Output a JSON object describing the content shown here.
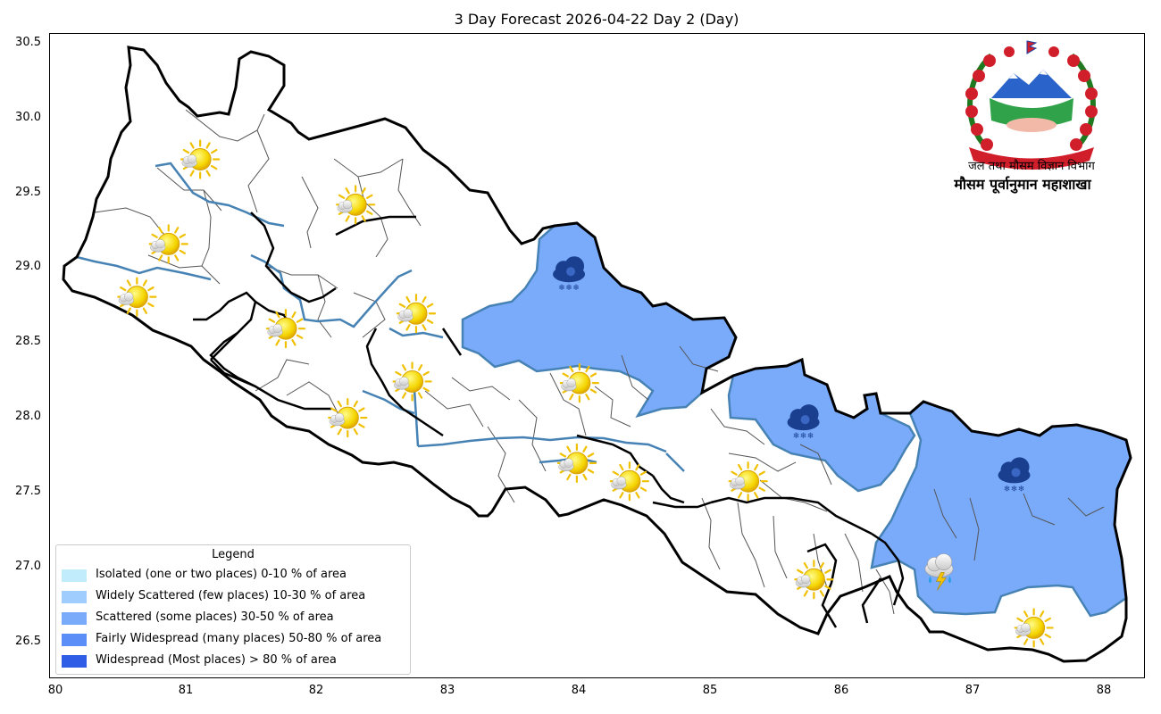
{
  "title": "3 Day Forecast 2026-04-22 Day 2 (Day)",
  "header": {
    "department": "जल तथा मौसम विज्ञान विभाग",
    "section": "मौसम पूर्वानुमान महाशाखा"
  },
  "axes": {
    "x_range": [
      79.98,
      88.3
    ],
    "y_range": [
      26.27,
      30.54
    ],
    "x_ticks": [
      "80",
      "81",
      "82",
      "83",
      "84",
      "85",
      "86",
      "87",
      "88"
    ],
    "y_ticks": [
      "26.5",
      "27.0",
      "27.5",
      "28.0",
      "28.5",
      "29.0",
      "29.5",
      "30.0",
      "30.5"
    ]
  },
  "legend": {
    "title": "Legend",
    "placement": "lower-left",
    "items": [
      {
        "label": "Isolated (one or two places)  0-10 % of area",
        "color": "#c0ecfb"
      },
      {
        "label": "Widely Scattered (few places)  10-30 % of area",
        "color": "#9fcdfd"
      },
      {
        "label": "Scattered (some places)  30-50 % of area",
        "color": "#7aabfb"
      },
      {
        "label": "Fairly Widespread (many places)  50-80 % of area",
        "color": "#5b8ef7"
      },
      {
        "label": "Widespread (Most places) > 80 % of area",
        "color": "#2f5de6"
      }
    ]
  },
  "colors": {
    "province_border": "#000000",
    "basin_border": "#4682b4",
    "district_border": "#555555",
    "scattered_fill": "#7aabfb"
  },
  "weather_icons": [
    {
      "lon": 81.12,
      "lat": 29.71,
      "icon": "partly-sunny-icon"
    },
    {
      "lon": 82.3,
      "lat": 29.41,
      "icon": "partly-sunny-icon"
    },
    {
      "lon": 80.88,
      "lat": 29.15,
      "icon": "partly-sunny-icon"
    },
    {
      "lon": 80.64,
      "lat": 28.8,
      "icon": "partly-sunny-icon"
    },
    {
      "lon": 81.77,
      "lat": 28.59,
      "icon": "partly-sunny-icon"
    },
    {
      "lon": 82.76,
      "lat": 28.69,
      "icon": "partly-sunny-icon"
    },
    {
      "lon": 82.73,
      "lat": 28.24,
      "icon": "partly-sunny-icon"
    },
    {
      "lon": 82.24,
      "lat": 28.0,
      "icon": "partly-sunny-icon"
    },
    {
      "lon": 84.0,
      "lat": 28.23,
      "icon": "partly-sunny-icon"
    },
    {
      "lon": 83.98,
      "lat": 27.7,
      "icon": "partly-sunny-icon"
    },
    {
      "lon": 84.38,
      "lat": 27.58,
      "icon": "partly-sunny-icon"
    },
    {
      "lon": 85.28,
      "lat": 27.58,
      "icon": "partly-sunny-icon"
    },
    {
      "lon": 85.78,
      "lat": 26.93,
      "icon": "partly-sunny-icon"
    },
    {
      "lon": 87.45,
      "lat": 26.61,
      "icon": "partly-sunny-icon"
    },
    {
      "lon": 83.92,
      "lat": 28.95,
      "icon": "snow-cloud-icon"
    },
    {
      "lon": 85.7,
      "lat": 27.97,
      "icon": "snow-cloud-icon"
    },
    {
      "lon": 87.3,
      "lat": 27.62,
      "icon": "snow-cloud-icon"
    },
    {
      "lon": 86.73,
      "lat": 27.0,
      "icon": "thunder-rain-icon"
    }
  ]
}
